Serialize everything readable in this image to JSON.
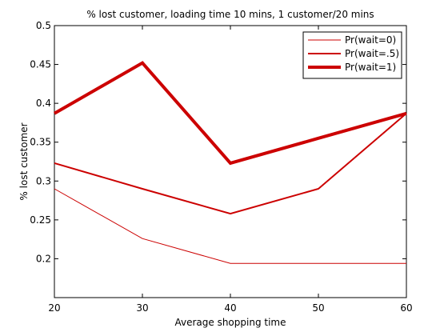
{
  "chart_data": {
    "type": "line",
    "title": "% lost customer, loading time 10 mins, 1 customer/20 mins",
    "xlabel": "Average shopping time",
    "ylabel": "% lost customer",
    "xlim": [
      20,
      60
    ],
    "ylim": [
      0.15,
      0.5
    ],
    "xticks": [
      20,
      30,
      40,
      50,
      60
    ],
    "yticks": [
      0.2,
      0.25,
      0.3,
      0.35,
      0.4,
      0.45,
      0.5
    ],
    "xtick_labels": [
      "20",
      "30",
      "40",
      "50",
      "60"
    ],
    "ytick_labels": [
      "0.2",
      "0.25",
      "0.3",
      "0.35",
      "0.4",
      "0.45",
      "0.5"
    ],
    "grid": false,
    "legend_position": "top-right",
    "color": "#cc0000",
    "x": [
      20,
      30,
      40,
      50,
      60
    ],
    "series": [
      {
        "name": "Pr(wait=0)",
        "values": [
          0.29,
          0.226,
          0.194,
          0.194,
          0.194
        ],
        "weight": "thin"
      },
      {
        "name": "Pr(wait=.5)",
        "values": [
          0.323,
          0.29,
          0.258,
          0.29,
          0.387
        ],
        "weight": "medium"
      },
      {
        "name": "Pr(wait=1)",
        "values": [
          0.387,
          0.452,
          0.323,
          0.355,
          0.387
        ],
        "weight": "thick"
      }
    ]
  }
}
